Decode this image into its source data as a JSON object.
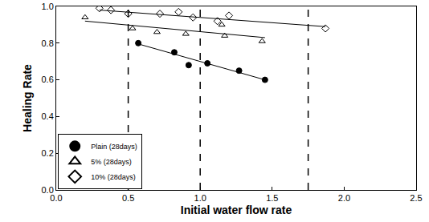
{
  "chart_data": {
    "type": "scatter",
    "x_label": "Initial water flow rate",
    "y_label": "Healing Rate",
    "xlim": [
      0,
      2.5
    ],
    "xticks": [
      {
        "value": 0,
        "label": "0.0"
      },
      0.5,
      {
        "value": 1,
        "label": "1.0"
      },
      1.5,
      {
        "value": 2,
        "label": "2.0"
      },
      2.5
    ],
    "ylim": [
      0,
      1
    ],
    "yticks": [
      {
        "value": 0,
        "label": "0.0"
      },
      0.2,
      0.4,
      0.6,
      0.8,
      {
        "value": 1,
        "label": "1.0"
      }
    ],
    "grid": false,
    "legend": "lower left",
    "vlines": [
      0.5,
      1.0,
      1.75
    ],
    "series": [
      {
        "name": "Plain (28days)",
        "color": "#000000",
        "marker": "circle",
        "x": [
          0.57,
          0.82,
          0.92,
          1.05,
          1.27,
          1.45
        ],
        "values": [
          0.8,
          0.75,
          0.68,
          0.69,
          0.65,
          0.6
        ],
        "trend": {
          "x": [
            0.55,
            1.45
          ],
          "values": [
            0.8,
            0.6
          ]
        }
      },
      {
        "name": "5% (28days)",
        "color": "#000000",
        "marker": "triangle-up-open",
        "x": [
          0.2,
          0.53,
          0.7,
          0.9,
          1.15,
          1.17,
          1.43
        ],
        "values": [
          0.94,
          0.88,
          0.86,
          0.85,
          0.9,
          0.84,
          0.81
        ],
        "trend": {
          "x": [
            0.2,
            1.45
          ],
          "values": [
            0.92,
            0.83
          ]
        }
      },
      {
        "name": "10% (28days)",
        "color": "#000000",
        "marker": "diamond-open",
        "x": [
          0.3,
          0.38,
          0.5,
          0.72,
          0.85,
          0.95,
          1.12,
          1.2,
          1.87
        ],
        "values": [
          0.99,
          0.98,
          0.96,
          0.96,
          0.97,
          0.94,
          0.92,
          0.95,
          0.88
        ],
        "trend": {
          "x": [
            0.3,
            1.87
          ],
          "values": [
            0.98,
            0.89
          ]
        }
      }
    ]
  }
}
